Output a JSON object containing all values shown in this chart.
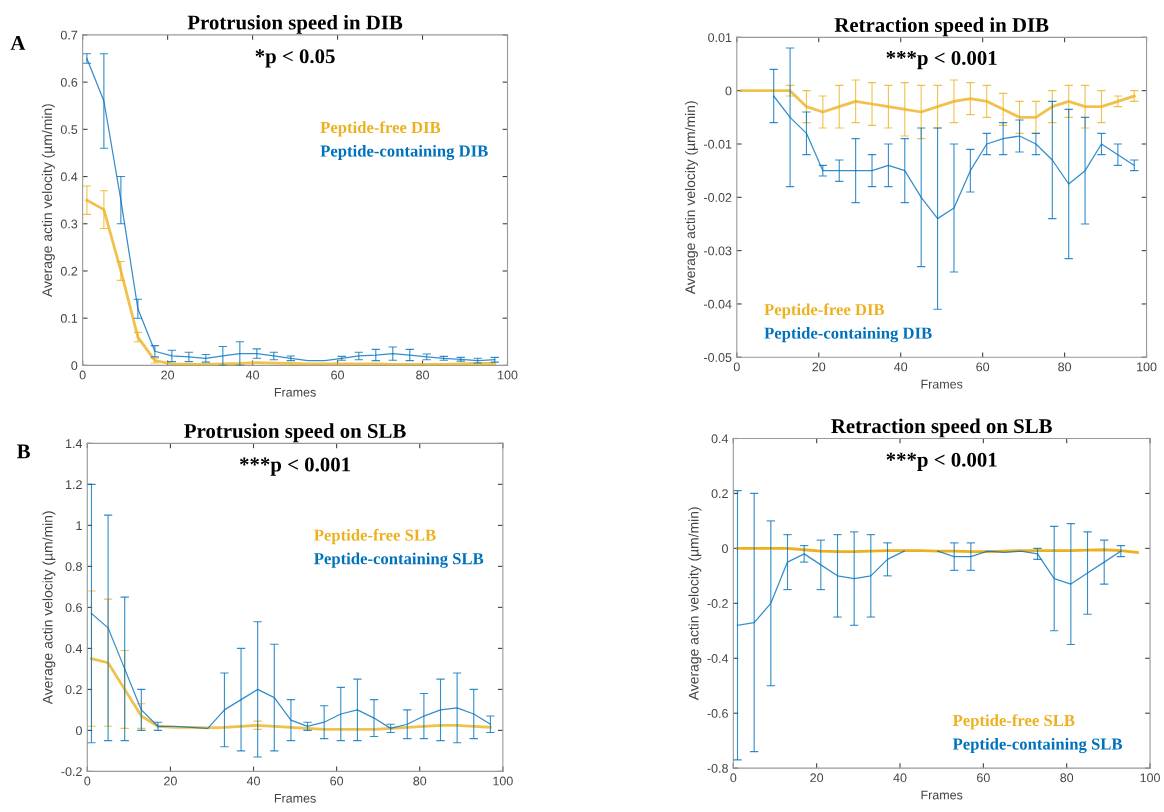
{
  "chart_data": [
    {
      "type": "line",
      "title": "Protrusion speed in DIB",
      "xlabel": "Frames",
      "ylabel": "Average actin velocity (µm/min)",
      "annotations": [
        "A",
        "*p < 0.05"
      ],
      "xlim": [
        0,
        100
      ],
      "xticks": [
        0,
        20,
        40,
        60,
        80,
        100
      ],
      "ylim": [
        0,
        0.7
      ],
      "yticks": [
        0,
        0.1,
        0.2,
        0.3,
        0.4,
        0.5,
        0.6,
        0.7
      ],
      "legend": "right",
      "grid": false,
      "marker": "none",
      "x": [
        1,
        5,
        9,
        13,
        17,
        21,
        25,
        29,
        33,
        37,
        41,
        45,
        49,
        53,
        57,
        61,
        65,
        69,
        73,
        77,
        81,
        85,
        89,
        93,
        97
      ],
      "series": [
        {
          "name": "Peptide-free DIB",
          "color": "#EDB120",
          "values": [
            0.35,
            0.33,
            0.2,
            0.06,
            0.01,
            0.003,
            0.002,
            0.002,
            0.003,
            0.004,
            0.006,
            0.005,
            0.004,
            0.003,
            0.003,
            0.003,
            0.003,
            0.003,
            0.002,
            0.002,
            0.002,
            0.002,
            0.003,
            0.004,
            0.004
          ],
          "errors": [
            0.03,
            0.04,
            0.02,
            0.01,
            0.005,
            null,
            null,
            null,
            null,
            null,
            null,
            null,
            null,
            null,
            null,
            null,
            null,
            null,
            null,
            null,
            null,
            null,
            null,
            null,
            null
          ]
        },
        {
          "name": "Peptide-containing DIB",
          "color": "#0072BD",
          "values": [
            0.65,
            0.56,
            0.35,
            0.12,
            0.03,
            0.02,
            0.018,
            0.015,
            0.02,
            0.025,
            0.025,
            0.02,
            0.015,
            0.01,
            0.01,
            0.015,
            0.02,
            0.022,
            0.025,
            0.022,
            0.018,
            0.015,
            0.013,
            0.01,
            0.012
          ],
          "errors": [
            0.01,
            0.1,
            0.05,
            0.02,
            0.012,
            0.012,
            0.01,
            0.008,
            0.02,
            0.025,
            0.01,
            0.008,
            0.005,
            null,
            null,
            0.004,
            0.008,
            0.012,
            0.014,
            0.012,
            0.006,
            0.004,
            0.004,
            0.005,
            0.005
          ]
        }
      ]
    },
    {
      "type": "line",
      "title": "Retraction speed in DIB",
      "xlabel": "Frames",
      "ylabel": "Average actin velocity (µm/min)",
      "annotations": [
        "***p < 0.001"
      ],
      "xlim": [
        0,
        100
      ],
      "xticks": [
        0,
        20,
        40,
        60,
        80,
        100
      ],
      "ylim": [
        -0.05,
        0.01
      ],
      "yticks": [
        -0.05,
        -0.04,
        -0.03,
        -0.02,
        -0.01,
        0,
        0.01
      ],
      "legend": "bottom left",
      "grid": false,
      "marker": "none",
      "x": [
        1,
        5,
        9,
        13,
        17,
        21,
        25,
        29,
        33,
        37,
        41,
        45,
        49,
        53,
        57,
        61,
        65,
        69,
        73,
        77,
        81,
        85,
        89,
        93,
        97
      ],
      "series": [
        {
          "name": "Peptide-free DIB",
          "color": "#EDB120",
          "values": [
            0,
            0,
            0,
            0,
            -0.003,
            -0.004,
            -0.003,
            -0.002,
            -0.0025,
            -0.003,
            -0.0035,
            -0.004,
            -0.003,
            -0.002,
            -0.0015,
            -0.002,
            -0.0035,
            -0.005,
            -0.005,
            -0.003,
            -0.002,
            -0.003,
            -0.003,
            -0.002,
            -0.001
          ],
          "errors": [
            null,
            null,
            null,
            0.001,
            0.003,
            0.003,
            0.004,
            0.004,
            0.004,
            0.004,
            0.005,
            0.005,
            0.004,
            0.004,
            0.003,
            0.003,
            0.003,
            0.003,
            0.003,
            0.003,
            0.003,
            0.004,
            0.003,
            0.001,
            0.001
          ]
        },
        {
          "name": "Peptide-containing DIB",
          "color": "#0072BD",
          "values": [
            null,
            null,
            -0.001,
            -0.005,
            -0.008,
            -0.015,
            -0.015,
            -0.015,
            -0.015,
            -0.014,
            -0.015,
            -0.02,
            -0.024,
            -0.022,
            -0.015,
            -0.01,
            -0.009,
            -0.0085,
            -0.01,
            -0.013,
            -0.0175,
            -0.015,
            -0.01,
            -0.012,
            -0.014
          ],
          "errors": [
            null,
            null,
            0.005,
            0.013,
            0.004,
            0.001,
            0.002,
            0.006,
            0.003,
            0.004,
            0.006,
            0.013,
            0.017,
            0.012,
            0.004,
            0.002,
            0.003,
            0.003,
            0.002,
            0.011,
            0.014,
            0.01,
            0.002,
            0.002,
            0.001
          ]
        }
      ]
    },
    {
      "type": "line",
      "title": "Protrusion speed on SLB",
      "xlabel": "Frames",
      "ylabel": "Average actin velocity (µm/min)",
      "annotations": [
        "B",
        "***p < 0.001"
      ],
      "xlim": [
        0,
        100
      ],
      "xticks": [
        0,
        20,
        40,
        60,
        80,
        100
      ],
      "ylim": [
        -0.2,
        1.4
      ],
      "yticks": [
        -0.2,
        0,
        0.2,
        0.4,
        0.6,
        0.8,
        1,
        1.2,
        1.4
      ],
      "legend": "right",
      "grid": false,
      "marker": "none",
      "x": [
        1,
        5,
        9,
        13,
        17,
        21,
        25,
        29,
        33,
        37,
        41,
        45,
        49,
        53,
        57,
        61,
        65,
        69,
        73,
        77,
        81,
        85,
        89,
        93,
        97
      ],
      "series": [
        {
          "name": "Peptide-free SLB",
          "color": "#EDB120",
          "values": [
            0.35,
            0.33,
            0.2,
            0.07,
            0.02,
            0.015,
            0.015,
            0.012,
            0.015,
            0.02,
            0.025,
            0.02,
            0.015,
            0.01,
            0.005,
            0.005,
            0.005,
            0.005,
            0.01,
            0.015,
            0.02,
            0.025,
            0.025,
            0.02,
            0.015
          ],
          "errors": [
            0.33,
            0.31,
            0.19,
            0.06,
            null,
            null,
            null,
            null,
            null,
            null,
            0.02,
            null,
            null,
            null,
            null,
            null,
            null,
            null,
            null,
            null,
            null,
            null,
            null,
            null,
            null
          ]
        },
        {
          "name": "Peptide-containing SLB",
          "color": "#0072BD",
          "values": [
            0.57,
            0.5,
            0.3,
            0.1,
            0.02,
            0.02,
            0.015,
            0.01,
            0.1,
            0.15,
            0.2,
            0.16,
            0.05,
            0.02,
            0.04,
            0.08,
            0.1,
            0.06,
            0.01,
            0.03,
            0.07,
            0.1,
            0.11,
            0.08,
            0.03
          ],
          "errors": [
            0.63,
            0.55,
            0.35,
            0.1,
            0.02,
            null,
            null,
            null,
            0.18,
            0.25,
            0.33,
            0.26,
            0.1,
            0.02,
            0.08,
            0.13,
            0.15,
            0.09,
            0.02,
            0.07,
            0.11,
            0.15,
            0.17,
            0.12,
            0.04
          ]
        }
      ]
    },
    {
      "type": "line",
      "title": "Retraction speed on SLB",
      "xlabel": "Frames",
      "ylabel": "Average actin velocity (µm/min)",
      "annotations": [
        "***p < 0.001"
      ],
      "xlim": [
        0,
        100
      ],
      "xticks": [
        0,
        20,
        40,
        60,
        80,
        100
      ],
      "ylim": [
        -0.8,
        0.4
      ],
      "yticks": [
        -0.8,
        -0.6,
        -0.4,
        -0.2,
        0,
        0.2,
        0.4
      ],
      "legend": "bottom right",
      "grid": false,
      "marker": "none",
      "x": [
        1,
        5,
        9,
        13,
        17,
        21,
        25,
        29,
        33,
        37,
        41,
        45,
        49,
        53,
        57,
        61,
        65,
        69,
        73,
        77,
        81,
        85,
        89,
        93,
        97
      ],
      "series": [
        {
          "name": "Peptide-free SLB",
          "color": "#EDB120",
          "values": [
            0,
            0,
            0,
            0,
            -0.005,
            -0.01,
            -0.012,
            -0.012,
            -0.01,
            -0.008,
            -0.008,
            -0.008,
            -0.01,
            -0.01,
            -0.012,
            -0.012,
            -0.01,
            -0.008,
            -0.008,
            -0.008,
            -0.008,
            -0.006,
            -0.005,
            -0.008,
            -0.015
          ]
        },
        {
          "name": "Peptide-containing SLB",
          "color": "#0072BD",
          "values": [
            -0.28,
            -0.27,
            -0.2,
            -0.05,
            -0.02,
            -0.06,
            -0.1,
            -0.11,
            -0.1,
            -0.04,
            -0.01,
            null,
            -0.01,
            -0.03,
            -0.03,
            -0.01,
            -0.015,
            -0.01,
            -0.02,
            -0.11,
            -0.13,
            -0.09,
            -0.05,
            -0.01,
            null
          ],
          "errors": [
            0.49,
            0.47,
            0.3,
            0.1,
            0.03,
            0.09,
            0.15,
            0.17,
            0.15,
            0.06,
            null,
            null,
            null,
            0.05,
            0.05,
            null,
            null,
            null,
            0.02,
            0.19,
            0.22,
            0.15,
            0.08,
            0.02,
            null
          ]
        }
      ]
    }
  ]
}
